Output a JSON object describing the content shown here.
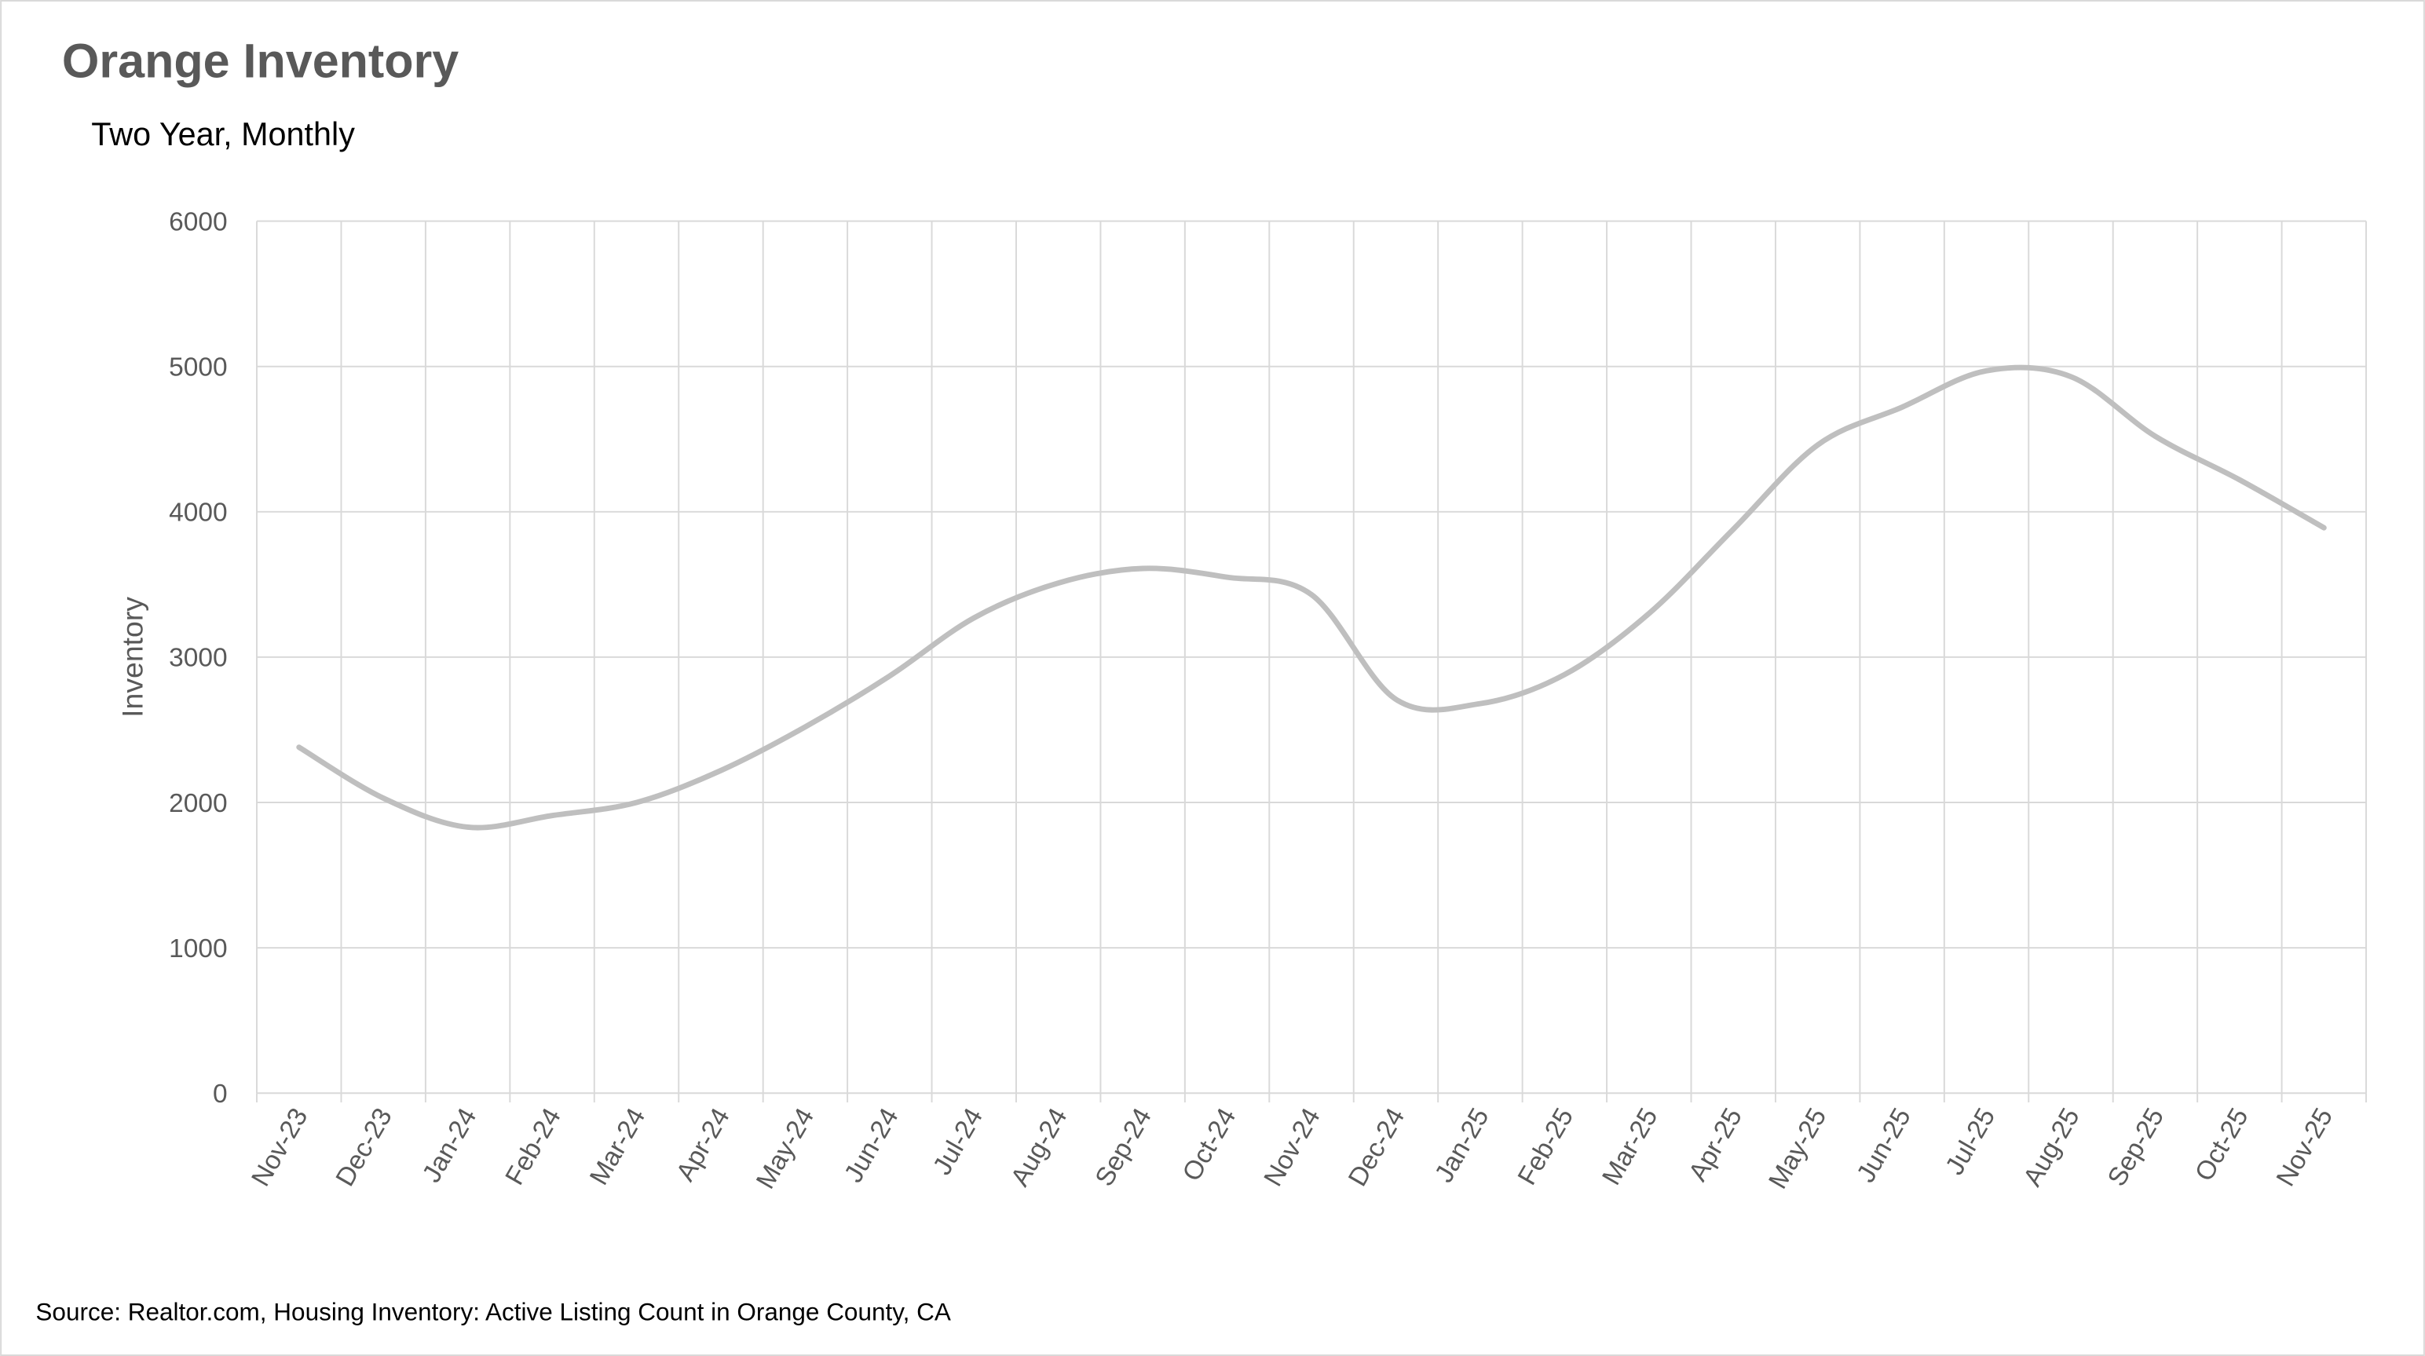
{
  "chart_data": {
    "type": "line",
    "title": "Orange Inventory",
    "subtitle": "Two Year, Monthly",
    "y_label": "Inventory",
    "source": "Source: Realtor.com, Housing Inventory: Active Listing Count in Orange County, CA",
    "categories": [
      "Nov-23",
      "Dec-23",
      "Jan-24",
      "Feb-24",
      "Mar-24",
      "Apr-24",
      "May-24",
      "Jun-24",
      "Jul-24",
      "Aug-24",
      "Sep-24",
      "Oct-24",
      "Nov-24",
      "Dec-24",
      "Jan-25",
      "Feb-25",
      "Mar-25",
      "Apr-25",
      "May-25",
      "Jun-25",
      "Jul-25",
      "Aug-25",
      "Sep-25",
      "Oct-25",
      "Nov-25"
    ],
    "values": [
      2380,
      2030,
      1830,
      1910,
      2000,
      2220,
      2520,
      2870,
      3270,
      3510,
      3610,
      3550,
      3430,
      2710,
      2680,
      2880,
      3300,
      3880,
      4460,
      4720,
      4970,
      4930,
      4520,
      4220,
      3890
    ],
    "color": "#bfbfbf",
    "smooth": true,
    "ylim": [
      0,
      6000
    ],
    "yticks": [
      0,
      1000,
      2000,
      3000,
      4000,
      5000,
      6000
    ],
    "grid": true
  }
}
